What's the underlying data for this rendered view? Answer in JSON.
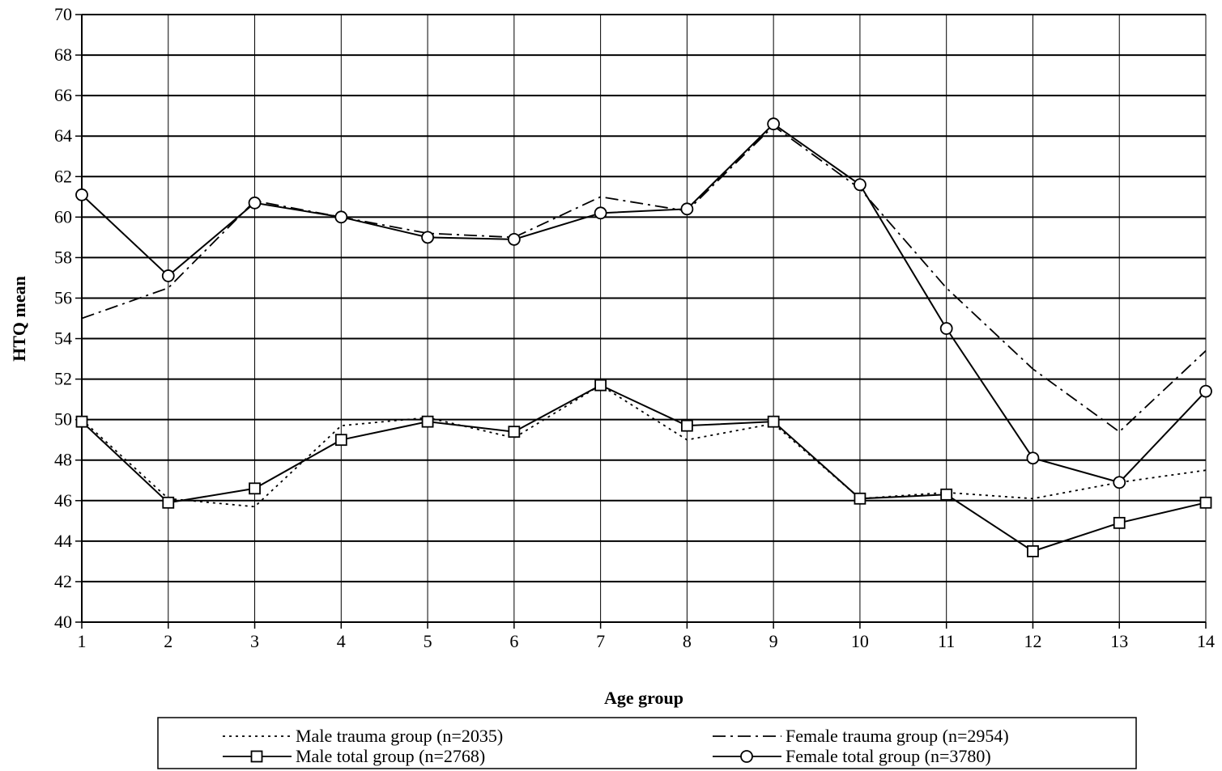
{
  "chart_data": {
    "type": "line",
    "title": "",
    "xlabel": "Age group",
    "ylabel": "HTQ mean",
    "x": [
      1,
      2,
      3,
      4,
      5,
      6,
      7,
      8,
      9,
      10,
      11,
      12,
      13,
      14
    ],
    "xlim": [
      1,
      14
    ],
    "ylim": [
      40,
      70
    ],
    "yticks": [
      40,
      42,
      44,
      46,
      48,
      50,
      52,
      54,
      56,
      58,
      60,
      62,
      64,
      66,
      68,
      70
    ],
    "grid": true,
    "legend_position": "bottom",
    "series": [
      {
        "name": "Male trauma group (n=2035)",
        "style": "dotted",
        "marker": "none",
        "values": [
          50.0,
          46.1,
          45.7,
          49.7,
          50.1,
          49.1,
          51.7,
          49.0,
          49.8,
          46.1,
          46.4,
          46.1,
          46.9,
          47.5
        ]
      },
      {
        "name": "Female trauma group (n=2954)",
        "style": "dashdot",
        "marker": "none",
        "values": [
          55.0,
          56.5,
          60.8,
          60.0,
          59.2,
          59.0,
          61.0,
          60.3,
          64.5,
          61.4,
          56.5,
          52.5,
          49.4,
          53.4
        ]
      },
      {
        "name": "Male total group (n=2768)",
        "style": "solid",
        "marker": "square",
        "values": [
          49.9,
          45.9,
          46.6,
          49.0,
          49.9,
          49.4,
          51.7,
          49.7,
          49.9,
          46.1,
          46.3,
          43.5,
          44.9,
          45.9
        ]
      },
      {
        "name": "Female total group (n=3780)",
        "style": "solid",
        "marker": "circle",
        "values": [
          61.1,
          57.1,
          60.7,
          60.0,
          59.0,
          58.9,
          60.2,
          60.4,
          64.6,
          61.6,
          54.5,
          48.1,
          46.9,
          51.4
        ]
      }
    ]
  }
}
